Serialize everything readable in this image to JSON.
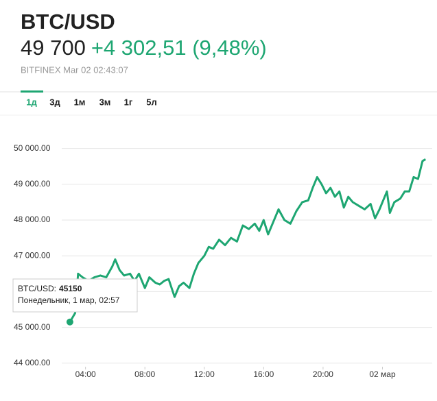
{
  "header": {
    "symbol": "BTC/USD",
    "price": "49 700",
    "change": "+4 302,51 (9,48%)",
    "source": "BITFINEX Mar 02 02:43:07"
  },
  "tabs": [
    "1д",
    "3д",
    "1м",
    "3м",
    "1г",
    "5л"
  ],
  "tooltip": {
    "label": "BTC/USD:",
    "value": 45150,
    "date": "Понедельник, 1 мар, 02:57"
  },
  "chart_data": {
    "type": "line",
    "color": "#1ea672",
    "grid": true,
    "xlim": [
      2.4,
      27.35
    ],
    "ylim": [
      43900,
      50300
    ],
    "xticks": [
      {
        "value": 4,
        "label": "04:00"
      },
      {
        "value": 8,
        "label": "08:00"
      },
      {
        "value": 12,
        "label": "12:00"
      },
      {
        "value": 16,
        "label": "16:00"
      },
      {
        "value": 20,
        "label": "20:00"
      },
      {
        "value": 24,
        "label": "02 мар"
      }
    ],
    "yticks": [
      {
        "value": 44000,
        "label": "44 000.00"
      },
      {
        "value": 45000,
        "label": "45 000.00"
      },
      {
        "value": 46000,
        "label": "46 000.00"
      },
      {
        "value": 47000,
        "label": "47 000.00"
      },
      {
        "value": 48000,
        "label": "48 000.00"
      },
      {
        "value": 49000,
        "label": "49 000.00"
      },
      {
        "value": 50000,
        "label": "50 000.00"
      }
    ],
    "x": [
      2.95,
      3.3,
      3.5,
      3.8,
      4.2,
      4.6,
      5.0,
      5.4,
      5.8,
      6.0,
      6.3,
      6.6,
      7.0,
      7.3,
      7.6,
      8.0,
      8.3,
      8.7,
      9.0,
      9.3,
      9.6,
      10.0,
      10.3,
      10.6,
      11.0,
      11.3,
      11.6,
      12.0,
      12.3,
      12.6,
      13.0,
      13.4,
      13.8,
      14.2,
      14.6,
      15.0,
      15.4,
      15.7,
      16.0,
      16.3,
      16.6,
      17.0,
      17.4,
      17.8,
      18.2,
      18.6,
      19.0,
      19.3,
      19.6,
      19.9,
      20.2,
      20.5,
      20.8,
      21.1,
      21.4,
      21.7,
      22.0,
      22.4,
      22.8,
      23.2,
      23.5,
      23.8,
      24.0,
      24.3,
      24.5,
      24.8,
      25.2,
      25.5,
      25.8,
      26.1,
      26.4,
      26.7,
      26.9
    ],
    "series": [
      {
        "color": "#1ea672",
        "values": [
          45150,
          45400,
          46500,
          46400,
          46300,
          46400,
          46450,
          46400,
          46700,
          46900,
          46600,
          46450,
          46500,
          46300,
          46500,
          46100,
          46400,
          46250,
          46200,
          46300,
          46350,
          45850,
          46150,
          46250,
          46100,
          46500,
          46800,
          47000,
          47250,
          47200,
          47450,
          47300,
          47500,
          47400,
          47850,
          47750,
          47900,
          47700,
          48000,
          47600,
          47900,
          48300,
          48000,
          47900,
          48250,
          48500,
          48550,
          48900,
          49200,
          49000,
          48750,
          48900,
          48650,
          48800,
          48350,
          48650,
          48500,
          48400,
          48300,
          48450,
          48050,
          48300,
          48500,
          48800,
          48200,
          48500,
          48600,
          48800,
          48800,
          49200,
          49150,
          49650,
          49700
        ]
      }
    ]
  }
}
